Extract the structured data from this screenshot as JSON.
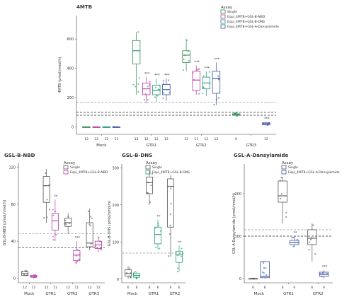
{
  "chart_data": [
    {
      "type": "boxplot",
      "title": "4MTB",
      "ylabel": "4MTB (pmol/nmol/h)",
      "ylim": [
        -50,
        760
      ],
      "yticks": [
        0,
        200,
        400,
        600
      ],
      "categories": [
        "Mock",
        "GTR1",
        "GTR2",
        "GTR3"
      ],
      "legend_title": "Assay",
      "series": [
        {
          "name": "Single",
          "color": "#2f8b55"
        },
        {
          "name": "Equi_4MTB+GSL-B-NBD",
          "color": "#b23aa8"
        },
        {
          "name": "Equi_4MTB+GSL-B-DNS",
          "color": "#1f9a76"
        },
        {
          "name": "Equi_4MTB+GSL-A-Dansylamide",
          "color": "#3b4fa0"
        }
      ],
      "boxes": [
        {
          "cat": 0,
          "s": 0,
          "q": [
            0,
            0,
            0,
            0,
            0
          ],
          "n": "12"
        },
        {
          "cat": 0,
          "s": 1,
          "q": [
            0,
            0,
            0,
            0,
            0
          ],
          "n": "12"
        },
        {
          "cat": 0,
          "s": 2,
          "q": [
            0,
            0,
            0,
            0,
            0
          ],
          "n": "12"
        },
        {
          "cat": 0,
          "s": 3,
          "q": [
            0,
            0,
            0,
            0,
            0
          ],
          "n": "11"
        },
        {
          "cat": 1,
          "s": 0,
          "q": [
            220,
            430,
            520,
            590,
            650
          ],
          "n": "12"
        },
        {
          "cat": 1,
          "s": 1,
          "q": [
            160,
            220,
            260,
            300,
            340
          ],
          "n": "12",
          "sig": "***"
        },
        {
          "cat": 1,
          "s": 2,
          "q": [
            170,
            220,
            250,
            285,
            330
          ],
          "n": "12",
          "sig": "***"
        },
        {
          "cat": 1,
          "s": 3,
          "q": [
            180,
            220,
            255,
            290,
            330
          ],
          "n": "12",
          "sig": "***"
        },
        {
          "cat": 2,
          "s": 0,
          "q": [
            380,
            440,
            490,
            520,
            600
          ],
          "n": "12"
        },
        {
          "cat": 2,
          "s": 1,
          "q": [
            220,
            250,
            320,
            380,
            420
          ],
          "n": "11",
          "sig": "***"
        },
        {
          "cat": 2,
          "s": 2,
          "q": [
            210,
            260,
            300,
            340,
            380
          ],
          "n": "12",
          "sig": "***"
        },
        {
          "cat": 2,
          "s": 3,
          "q": [
            150,
            230,
            330,
            380,
            440
          ],
          "n": "12",
          "sig": "***"
        },
        {
          "cat": 3,
          "s": 0,
          "q": [
            70,
            80,
            85,
            90,
            100
          ],
          "n": "6"
        },
        {
          "cat": 3,
          "s": 3,
          "q": [
            10,
            15,
            22,
            28,
            35
          ],
          "n": "12",
          "sig": "***"
        }
      ],
      "hlines": [
        170,
        100,
        80
      ]
    },
    {
      "type": "boxplot",
      "title": "GSL-B-NBD",
      "ylabel": "GSL-B-NBD (pmol/nmol/h)",
      "ylim": [
        -5,
        125
      ],
      "yticks": [
        0,
        40,
        80,
        120
      ],
      "categories": [
        "Mock",
        "GTR1",
        "GTR2",
        "GTR3"
      ],
      "legend_title": "Assay",
      "series": [
        {
          "name": "Single",
          "color": "#555555"
        },
        {
          "name": "Equi_4MTB+GSL-B-NBD",
          "color": "#b23aa8"
        }
      ],
      "boxes": [
        {
          "cat": 0,
          "s": 0,
          "q": [
            2,
            3,
            5,
            7,
            9
          ],
          "n": "12"
        },
        {
          "cat": 0,
          "s": 1,
          "q": [
            0,
            1,
            2,
            3,
            4
          ],
          "n": "12"
        },
        {
          "cat": 1,
          "s": 0,
          "q": [
            60,
            82,
            100,
            110,
            118
          ],
          "n": "12"
        },
        {
          "cat": 1,
          "s": 1,
          "q": [
            40,
            52,
            62,
            70,
            85
          ],
          "n": "11",
          "sig": "**"
        },
        {
          "cat": 2,
          "s": 0,
          "q": [
            48,
            56,
            60,
            65,
            70
          ],
          "n": "12"
        },
        {
          "cat": 2,
          "s": 1,
          "q": [
            15,
            19,
            25,
            30,
            40
          ],
          "n": "11",
          "sig": "***"
        },
        {
          "cat": 3,
          "s": 0,
          "q": [
            30,
            34,
            38,
            60,
            75
          ],
          "n": "12"
        },
        {
          "cat": 3,
          "s": 1,
          "q": [
            28,
            32,
            36,
            40,
            45
          ],
          "n": "12"
        }
      ],
      "hlines": [
        48,
        33
      ]
    },
    {
      "type": "boxplot",
      "title": "GSL-B-DNS",
      "ylabel": "GSL-B-DNS (pmol/nmol/h)",
      "ylim": [
        -10,
        310
      ],
      "yticks": [
        0,
        100,
        200,
        300
      ],
      "categories": [
        "Mock",
        "GTR1",
        "GTR2"
      ],
      "legend_title": "Assay",
      "series": [
        {
          "name": "Single",
          "color": "#555555"
        },
        {
          "name": "Equi_4MTB+GSL-B-DNS",
          "color": "#1f9a76"
        }
      ],
      "boxes": [
        {
          "cat": 0,
          "s": 0,
          "q": [
            0,
            8,
            15,
            25,
            35
          ],
          "n": "6"
        },
        {
          "cat": 0,
          "s": 1,
          "q": [
            0,
            5,
            10,
            15,
            20
          ],
          "n": "6"
        },
        {
          "cat": 1,
          "s": 0,
          "q": [
            200,
            230,
            260,
            275,
            295
          ],
          "n": "6"
        },
        {
          "cat": 1,
          "s": 1,
          "q": [
            80,
            95,
            120,
            140,
            160
          ],
          "n": "6",
          "sig": "**"
        },
        {
          "cat": 2,
          "s": 0,
          "q": [
            60,
            140,
            250,
            270,
            280
          ],
          "n": "6"
        },
        {
          "cat": 2,
          "s": 1,
          "q": [
            20,
            45,
            65,
            75,
            90
          ],
          "n": "6",
          "sig": "**"
        }
      ],
      "hlines": [
        70
      ]
    },
    {
      "type": "boxplot",
      "title": "GSL-A-Dansylamide",
      "ylabel": "GSL-A-Dansylamide (pmol/nmol/h)",
      "ylim": [
        -10,
        270
      ],
      "yticks": [
        0,
        100,
        200
      ],
      "categories": [
        "Mock",
        "GTR1",
        "GTR2"
      ],
      "legend_title": "Assay",
      "series": [
        {
          "name": "Single",
          "color": "#555555"
        },
        {
          "name": "Equi_4MTB+GSL-A-Dansylamide",
          "color": "#3b4fa0"
        }
      ],
      "boxes": [
        {
          "cat": 0,
          "s": 0,
          "q": [
            0,
            0,
            0,
            0,
            0
          ],
          "n": "6"
        },
        {
          "cat": 0,
          "s": 1,
          "q": [
            0,
            2,
            5,
            40,
            40
          ],
          "n": "6"
        },
        {
          "cat": 1,
          "s": 0,
          "q": [
            130,
            180,
            195,
            230,
            240
          ],
          "n": "6"
        },
        {
          "cat": 1,
          "s": 1,
          "q": [
            75,
            80,
            85,
            90,
            100
          ],
          "n": "6",
          "sig": "**"
        },
        {
          "cat": 2,
          "s": 0,
          "q": [
            40,
            80,
            95,
            115,
            130
          ],
          "n": "6"
        },
        {
          "cat": 2,
          "s": 1,
          "q": [
            0,
            5,
            10,
            15,
            20
          ],
          "n": "6",
          "sig": "***"
        }
      ],
      "hlines": [
        115,
        100
      ]
    }
  ]
}
